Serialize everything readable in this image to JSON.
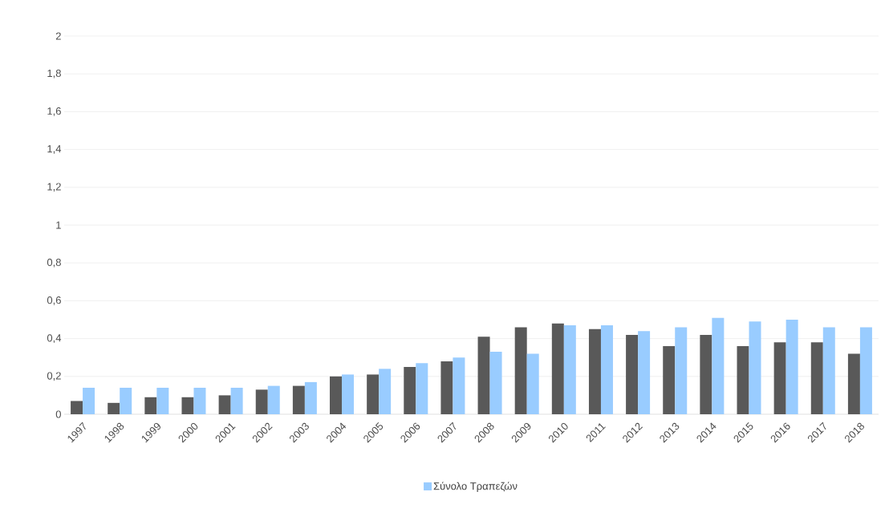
{
  "chart_data": {
    "type": "bar",
    "categories": [
      "1997",
      "1998",
      "1999",
      "2000",
      "2001",
      "2002",
      "2003",
      "2004",
      "2005",
      "2006",
      "2007",
      "2008",
      "2009",
      "2010",
      "2011",
      "2012",
      "2013",
      "2014",
      "2015",
      "2016",
      "2017",
      "2018"
    ],
    "series": [
      {
        "color": "#595959",
        "values": [
          0.07,
          0.06,
          0.09,
          0.09,
          0.1,
          0.13,
          0.15,
          0.2,
          0.21,
          0.25,
          0.28,
          0.41,
          0.46,
          0.48,
          0.45,
          0.42,
          0.36,
          0.42,
          0.36,
          0.38,
          0.38,
          0.32
        ]
      },
      {
        "name": "Σύνολο Τραπεζών",
        "color": "#99ccff",
        "values": [
          0.14,
          0.14,
          0.14,
          0.14,
          0.14,
          0.15,
          0.17,
          0.21,
          0.24,
          0.27,
          0.3,
          0.33,
          0.32,
          0.47,
          0.47,
          0.44,
          0.46,
          0.51,
          0.49,
          0.5,
          0.46,
          0.46
        ]
      }
    ],
    "ylim": [
      0,
      2
    ],
    "yticks": [
      0,
      {
        "value": 0.2,
        "label": "0,2"
      },
      {
        "value": 0.4,
        "label": "0,4"
      },
      {
        "value": 0.6,
        "label": "0,6"
      },
      {
        "value": 0.8,
        "label": "0,8"
      },
      1,
      {
        "value": 1.2,
        "label": "1,2"
      },
      {
        "value": 1.4,
        "label": "1,4"
      },
      {
        "value": 1.6,
        "label": "1,6"
      },
      {
        "value": 1.8,
        "label": "1,8"
      },
      2
    ],
    "grid": "y",
    "legend": "bottom"
  }
}
